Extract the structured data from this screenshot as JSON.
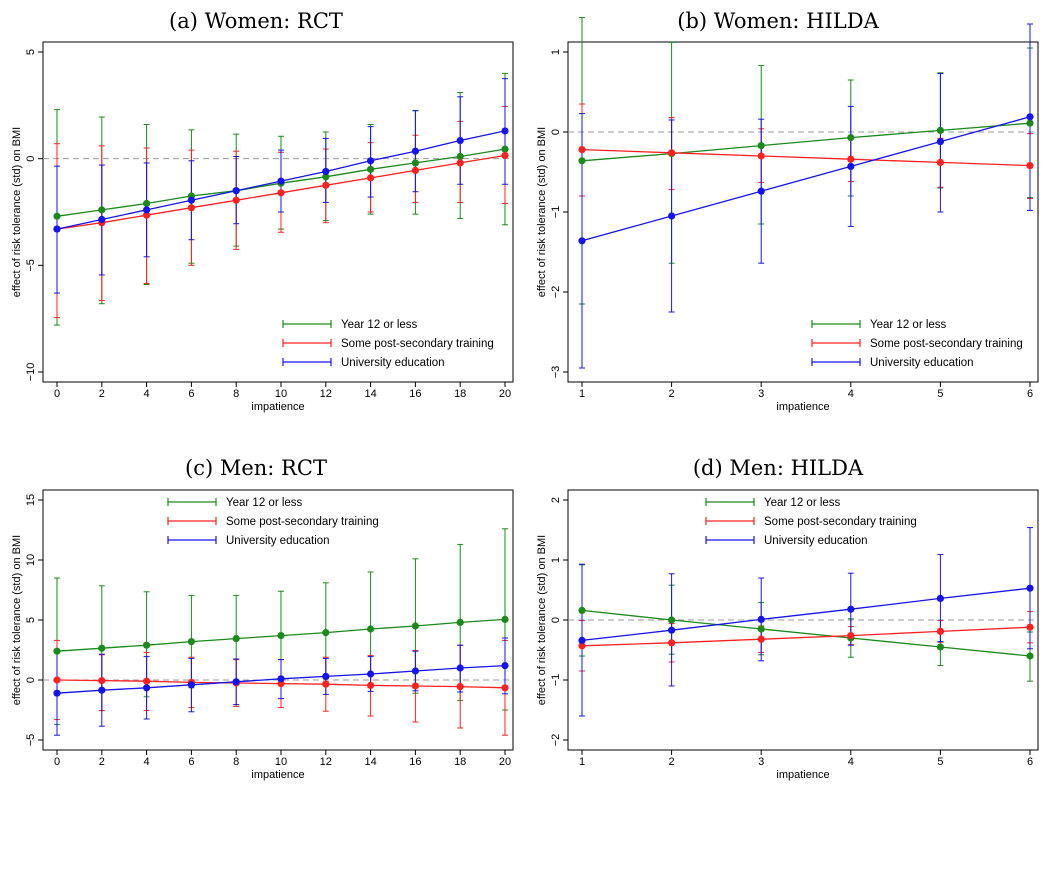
{
  "colors": {
    "year12": "#1a8a1a",
    "postsec": "#ff2020",
    "univ": "#1414ee",
    "reference": "#999999"
  },
  "chart_data": [
    {
      "type": "line",
      "title": "(a) Women: RCT",
      "xlabel": "impatience",
      "ylabel": "effect of risk tolerance (std) on BMI",
      "xlim": [
        0,
        20
      ],
      "ylim": [
        -10,
        5
      ],
      "xticks": [
        0,
        2,
        4,
        6,
        8,
        10,
        12,
        14,
        16,
        18,
        20
      ],
      "yticks": [
        -10,
        -5,
        0,
        5
      ],
      "reference_line": 0,
      "legend_position": "bottom-right",
      "x": [
        0,
        2,
        4,
        6,
        8,
        10,
        12,
        14,
        16,
        18,
        20
      ],
      "series": [
        {
          "name": "Year 12 or less",
          "color": "#1a8a1a",
          "values": [
            -2.7,
            -2.4,
            -2.1,
            -1.75,
            -1.5,
            -1.15,
            -0.85,
            -0.5,
            -0.2,
            0.1,
            0.45
          ],
          "lower": [
            -7.8,
            -6.8,
            -5.9,
            -4.9,
            -4.1,
            -3.3,
            -2.9,
            -2.6,
            -2.6,
            -2.8,
            -3.1
          ],
          "upper": [
            2.3,
            1.95,
            1.6,
            1.35,
            1.15,
            1.05,
            1.25,
            1.6,
            2.25,
            3.1,
            4.0
          ]
        },
        {
          "name": "Some post-secondary training",
          "color": "#ff2020",
          "values": [
            -3.3,
            -3.0,
            -2.65,
            -2.3,
            -1.95,
            -1.6,
            -1.25,
            -0.9,
            -0.55,
            -0.2,
            0.15
          ],
          "lower": [
            -7.45,
            -6.65,
            -5.85,
            -5.0,
            -4.25,
            -3.45,
            -3.0,
            -2.5,
            -2.05,
            -2.05,
            -2.1
          ],
          "upper": [
            0.7,
            0.6,
            0.5,
            0.4,
            0.35,
            0.3,
            0.45,
            0.75,
            1.1,
            1.75,
            2.45
          ]
        },
        {
          "name": "University education",
          "color": "#1414ee",
          "values": [
            -3.3,
            -2.85,
            -2.4,
            -1.95,
            -1.5,
            -1.05,
            -0.6,
            -0.1,
            0.35,
            0.85,
            1.3
          ],
          "lower": [
            -6.3,
            -5.45,
            -4.6,
            -3.8,
            -3.05,
            -2.5,
            -2.05,
            -1.8,
            -1.55,
            -1.2,
            -1.2
          ],
          "upper": [
            -0.35,
            -0.3,
            -0.2,
            -0.1,
            0.1,
            0.4,
            0.95,
            1.5,
            2.25,
            2.9,
            3.75
          ]
        }
      ]
    },
    {
      "type": "line",
      "title": "(b) Women: HILDA",
      "xlabel": "impatience",
      "ylabel": "effect of risk tolerance (std) on BMI",
      "xlim": [
        1,
        6
      ],
      "ylim": [
        -3,
        1
      ],
      "xticks": [
        1,
        2,
        3,
        4,
        5,
        6
      ],
      "yticks": [
        -3,
        -2,
        -1,
        0,
        1
      ],
      "reference_line": 0,
      "legend_position": "bottom-right",
      "x": [
        1,
        2,
        3,
        4,
        5,
        6
      ],
      "series": [
        {
          "name": "Year 12 or less",
          "color": "#1a8a1a",
          "values": [
            -0.36,
            -0.27,
            -0.17,
            -0.07,
            0.02,
            0.11
          ],
          "lower": [
            -2.15,
            -1.64,
            -1.15,
            -0.8,
            -0.7,
            -0.82
          ],
          "upper": [
            1.43,
            1.12,
            0.83,
            0.65,
            0.74,
            1.05
          ]
        },
        {
          "name": "Some post-secondary training",
          "color": "#ff2020",
          "values": [
            -0.22,
            -0.26,
            -0.3,
            -0.34,
            -0.38,
            -0.42
          ],
          "lower": [
            -0.8,
            -0.72,
            -0.63,
            -0.62,
            -0.69,
            -0.83
          ],
          "upper": [
            0.35,
            0.18,
            0.04,
            -0.07,
            -0.08,
            -0.02
          ]
        },
        {
          "name": "University education",
          "color": "#1414ee",
          "values": [
            -1.36,
            -1.05,
            -0.74,
            -0.43,
            -0.12,
            0.19
          ],
          "lower": [
            -2.95,
            -2.25,
            -1.64,
            -1.18,
            -1.0,
            -0.98
          ],
          "upper": [
            0.23,
            0.15,
            0.16,
            0.32,
            0.73,
            1.35
          ]
        }
      ]
    },
    {
      "type": "line",
      "title": "(c) Men: RCT",
      "xlabel": "impatience",
      "ylabel": "effect of risk tolerance (std) on BMI",
      "xlim": [
        0,
        20
      ],
      "ylim": [
        -5,
        15
      ],
      "xticks": [
        0,
        2,
        4,
        6,
        8,
        10,
        12,
        14,
        16,
        18,
        20
      ],
      "yticks": [
        -5,
        0,
        5,
        10,
        15
      ],
      "reference_line": 0,
      "legend_position": "top-center",
      "x": [
        0,
        2,
        4,
        6,
        8,
        10,
        12,
        14,
        16,
        18,
        20
      ],
      "series": [
        {
          "name": "Year 12 or less",
          "color": "#1a8a1a",
          "values": [
            2.4,
            2.65,
            2.9,
            3.2,
            3.45,
            3.7,
            3.95,
            4.25,
            4.5,
            4.8,
            5.05
          ],
          "lower": [
            -3.7,
            -2.55,
            -1.4,
            -0.65,
            -0.15,
            0.05,
            -0.15,
            -0.5,
            -1.1,
            -1.7,
            -2.5
          ],
          "upper": [
            8.5,
            7.85,
            7.35,
            7.05,
            7.05,
            7.4,
            8.1,
            9.0,
            10.1,
            11.3,
            12.6
          ]
        },
        {
          "name": "Some post-secondary training",
          "color": "#ff2020",
          "values": [
            0.0,
            -0.05,
            -0.1,
            -0.2,
            -0.25,
            -0.3,
            -0.35,
            -0.45,
            -0.5,
            -0.55,
            -0.65
          ],
          "lower": [
            -3.3,
            -2.55,
            -2.55,
            -2.3,
            -2.2,
            -2.3,
            -2.6,
            -3.0,
            -3.5,
            -4.0,
            -4.6
          ],
          "upper": [
            3.3,
            2.1,
            2.3,
            1.9,
            1.7,
            1.7,
            1.9,
            2.05,
            2.45,
            2.9,
            3.3
          ]
        },
        {
          "name": "University education",
          "color": "#1414ee",
          "values": [
            -1.1,
            -0.85,
            -0.65,
            -0.4,
            -0.15,
            0.1,
            0.3,
            0.5,
            0.75,
            1.0,
            1.2
          ],
          "lower": [
            -4.6,
            -3.85,
            -3.25,
            -2.65,
            -2.05,
            -1.55,
            -1.2,
            -0.95,
            -0.9,
            -1.0,
            -1.15
          ],
          "upper": [
            2.4,
            2.15,
            1.95,
            1.8,
            1.75,
            1.7,
            1.8,
            1.95,
            2.4,
            2.9,
            3.5
          ]
        }
      ]
    },
    {
      "type": "line",
      "title": "(d) Men: HILDA",
      "xlabel": "impatience",
      "ylabel": "effect of risk tolerance (std) on BMI",
      "xlim": [
        1,
        6
      ],
      "ylim": [
        -2,
        2
      ],
      "xticks": [
        1,
        2,
        3,
        4,
        5,
        6
      ],
      "yticks": [
        -2,
        -1,
        0,
        1,
        2
      ],
      "reference_line": 0,
      "legend_position": "top-center",
      "x": [
        1,
        2,
        3,
        4,
        5,
        6
      ],
      "series": [
        {
          "name": "Year 12 or less",
          "color": "#1a8a1a",
          "values": [
            0.16,
            0.0,
            -0.15,
            -0.3,
            -0.45,
            -0.6
          ],
          "lower": [
            -0.6,
            -0.57,
            -0.58,
            -0.62,
            -0.76,
            -1.02
          ],
          "upper": [
            0.92,
            0.58,
            0.29,
            0.02,
            -0.15,
            -0.2
          ]
        },
        {
          "name": "Some post-secondary training",
          "color": "#ff2020",
          "values": [
            -0.43,
            -0.38,
            -0.32,
            -0.26,
            -0.19,
            -0.12
          ],
          "lower": [
            -0.85,
            -0.7,
            -0.54,
            -0.41,
            -0.37,
            -0.38
          ],
          "upper": [
            -0.01,
            -0.06,
            -0.1,
            -0.11,
            -0.01,
            0.14
          ]
        },
        {
          "name": "University education",
          "color": "#1414ee",
          "values": [
            -0.34,
            -0.17,
            0.01,
            0.18,
            0.36,
            0.53
          ],
          "lower": [
            -1.6,
            -1.1,
            -0.68,
            -0.42,
            -0.36,
            -0.48
          ],
          "upper": [
            0.93,
            0.77,
            0.7,
            0.78,
            1.09,
            1.54
          ]
        }
      ]
    }
  ]
}
